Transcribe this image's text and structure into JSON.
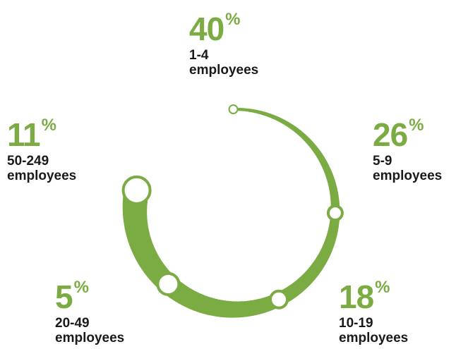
{
  "chart_data": {
    "type": "pie",
    "style": "radial progress ring with thickness proportional to share",
    "accent_color": "#7aac43",
    "percent_sign": "%",
    "slices": [
      {
        "label": "1-4 employees",
        "label_lines": [
          "1-4",
          "employees"
        ],
        "value": 40
      },
      {
        "label": "5-9 employees",
        "label_lines": [
          "5-9",
          "employees"
        ],
        "value": 26
      },
      {
        "label": "10-19 employees",
        "label_lines": [
          "10-19",
          "employees"
        ],
        "value": 18
      },
      {
        "label": "20-49 employees",
        "label_lines": [
          "20-49",
          "employees"
        ],
        "value": 5
      },
      {
        "label": "50-249 employees",
        "label_lines": [
          "50-249",
          "employees"
        ],
        "value": 11
      }
    ]
  }
}
